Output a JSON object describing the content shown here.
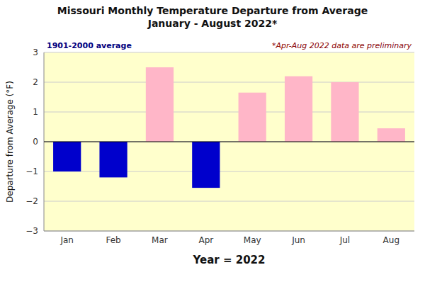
{
  "chart_data": {
    "type": "bar",
    "title": "Missouri Monthly Temperature Departure from Average\nJanuary - August 2022*",
    "x_label": "Year = 2022",
    "y_label": "Departure from Average (°F)",
    "annotations": [
      "1901-2000 average",
      "*Apr-Aug 2022 data are preliminary"
    ],
    "categories": [
      "Jan",
      "Feb",
      "Mar",
      "Apr",
      "May",
      "Jun",
      "Jul",
      "Aug"
    ],
    "values": [
      -1.0,
      -1.2,
      2.5,
      -1.55,
      1.65,
      2.2,
      2.0,
      0.45
    ],
    "colors": [
      "#0000CC",
      "#0000CC",
      "#FFB6C8",
      "#0000CC",
      "#FFB6C8",
      "#FFB6C8",
      "#FFB6C8",
      "#FFB6C8"
    ],
    "ylim": [
      -3.0,
      3.0
    ],
    "yticks": [
      -3.0,
      -2.0,
      -1.0,
      0.0,
      1.0,
      2.0,
      3.0
    ],
    "grid": true
  }
}
